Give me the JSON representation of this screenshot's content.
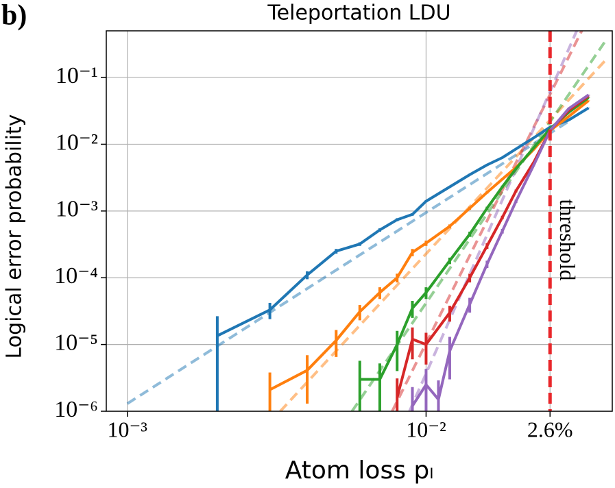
{
  "chart_data": {
    "type": "line",
    "panel_label": "b)",
    "title": "Teleportation LDU",
    "xlabel": "Atom loss pₗ",
    "ylabel": "Logical error probability",
    "xscale": "log",
    "yscale": "log",
    "xlim": [
      0.00085,
      0.042
    ],
    "ylim": [
      1e-06,
      0.5
    ],
    "xticks": [
      {
        "value": 0.001,
        "label": "10⁻³"
      },
      {
        "value": 0.01,
        "label": "10⁻²"
      },
      {
        "value": 0.026,
        "label": "2.6%",
        "color": "#e8262a"
      }
    ],
    "yticks": [
      {
        "value": 1e-06,
        "label": "10⁻⁶"
      },
      {
        "value": 1e-05,
        "label": "10⁻⁵"
      },
      {
        "value": 0.0001,
        "label": "10⁻⁴"
      },
      {
        "value": 0.001,
        "label": "10⁻³"
      },
      {
        "value": 0.01,
        "label": "10⁻²"
      },
      {
        "value": 0.1,
        "label": "10⁻¹"
      }
    ],
    "grid": true,
    "threshold": {
      "x": 0.026,
      "label": "threshold",
      "color": "#e8262a"
    },
    "series": [
      {
        "color": "#1f77b4",
        "x": [
          0.002,
          0.003,
          0.004,
          0.005,
          0.006,
          0.007,
          0.008,
          0.009,
          0.01,
          0.012,
          0.014,
          0.016,
          0.018,
          0.02,
          0.023,
          0.026,
          0.03,
          0.035
        ],
        "values": [
          1.35e-05,
          3.3e-05,
          0.00011,
          0.00025,
          0.00032,
          0.00052,
          0.00074,
          0.00089,
          0.0014,
          0.0023,
          0.0035,
          0.0049,
          0.0063,
          0.0085,
          0.0126,
          0.018,
          0.023,
          0.035
        ],
        "errors": [
          1.3e-05,
          9e-06,
          1.5e-05,
          2e-05,
          2e-05,
          3e-05,
          4e-05,
          4e-05,
          5e-05,
          6e-05,
          8e-05,
          0.0001,
          0.0001,
          0.0001,
          0.0002,
          0.0002,
          0.0002,
          0.0003
        ]
      },
      {
        "color": "#ff7f0e",
        "x": [
          0.003,
          0.004,
          0.005,
          0.006,
          0.007,
          0.008,
          0.009,
          0.01,
          0.012,
          0.014,
          0.016,
          0.018,
          0.02,
          0.023,
          0.026,
          0.03,
          0.035
        ],
        "values": [
          2.1e-06,
          4.1e-06,
          1.15e-05,
          3.1e-05,
          6e-05,
          0.0001,
          0.00024,
          0.00033,
          0.00059,
          0.0011,
          0.0019,
          0.003,
          0.0045,
          0.0085,
          0.016,
          0.026,
          0.045
        ],
        "errors": [
          1.7e-06,
          2.8e-06,
          5e-06,
          8e-06,
          1.2e-05,
          1.5e-05,
          3e-05,
          3e-05,
          4e-05,
          6e-05,
          8e-05,
          0.0001,
          0.0001,
          0.0002,
          0.0002,
          0.0003,
          0.0004
        ]
      },
      {
        "color": "#2ca02c",
        "x": [
          0.006,
          0.007,
          0.008,
          0.009,
          0.01,
          0.012,
          0.014,
          0.016,
          0.018,
          0.02,
          0.023,
          0.026,
          0.03,
          0.035
        ],
        "values": [
          3e-06,
          3e-06,
          1e-05,
          3.5e-05,
          6e-05,
          0.00018,
          0.00045,
          0.0011,
          0.0023,
          0.0043,
          0.009,
          0.017,
          0.03,
          0.05
        ],
        "errors": [
          2.7e-06,
          2.2e-06,
          6e-06,
          1e-05,
          1.2e-05,
          2e-05,
          4e-05,
          6e-05,
          0.0001,
          0.0001,
          0.0002,
          0.0002,
          0.0003,
          0.0004
        ]
      },
      {
        "color": "#d62728",
        "x": [
          0.008,
          0.009,
          0.01,
          0.012,
          0.014,
          0.016,
          0.018,
          0.02,
          0.023,
          0.026,
          0.03,
          0.035
        ],
        "values": [
          1.6e-06,
          1.2e-05,
          1e-05,
          3e-05,
          0.0001,
          0.0003,
          0.0008,
          0.002,
          0.0055,
          0.016,
          0.032,
          0.053
        ],
        "errors": [
          1.5e-06,
          6e-06,
          5e-06,
          8e-06,
          1.5e-05,
          3e-05,
          5e-05,
          0.0001,
          0.0001,
          0.0002,
          0.0003,
          0.0004
        ]
      },
      {
        "color": "#9467bd",
        "x": [
          0.009,
          0.01,
          0.011,
          0.012,
          0.014,
          0.016,
          0.018,
          0.02,
          0.023,
          0.026,
          0.03,
          0.035
        ],
        "values": [
          1.2e-06,
          2.5e-06,
          1.5e-06,
          8e-06,
          4e-05,
          0.00016,
          0.0005,
          0.0014,
          0.005,
          0.016,
          0.034,
          0.055
        ],
        "errors": [
          1.1e-06,
          1.8e-06,
          1.4e-06,
          5e-06,
          1e-05,
          2e-05,
          4e-05,
          8e-05,
          0.0001,
          0.0002,
          0.0003,
          0.0004
        ]
      }
    ],
    "fits": [
      {
        "color": "#1f77b4",
        "x": [
          0.001,
          0.03
        ],
        "values": [
          1.3e-06,
          0.022
        ]
      },
      {
        "color": "#ff7f0e",
        "x": [
          0.00325,
          0.0398
        ],
        "values": [
          1e-06,
          0.18
        ]
      },
      {
        "color": "#2ca02c",
        "x": [
          0.00565,
          0.0398
        ],
        "values": [
          1e-06,
          0.35
        ]
      },
      {
        "color": "#d62728",
        "x": [
          0.0077,
          0.034
        ],
        "values": [
          1e-06,
          0.62
        ]
      },
      {
        "color": "#9467bd",
        "x": [
          0.0088,
          0.033
        ],
        "values": [
          1e-06,
          0.7
        ]
      }
    ]
  }
}
